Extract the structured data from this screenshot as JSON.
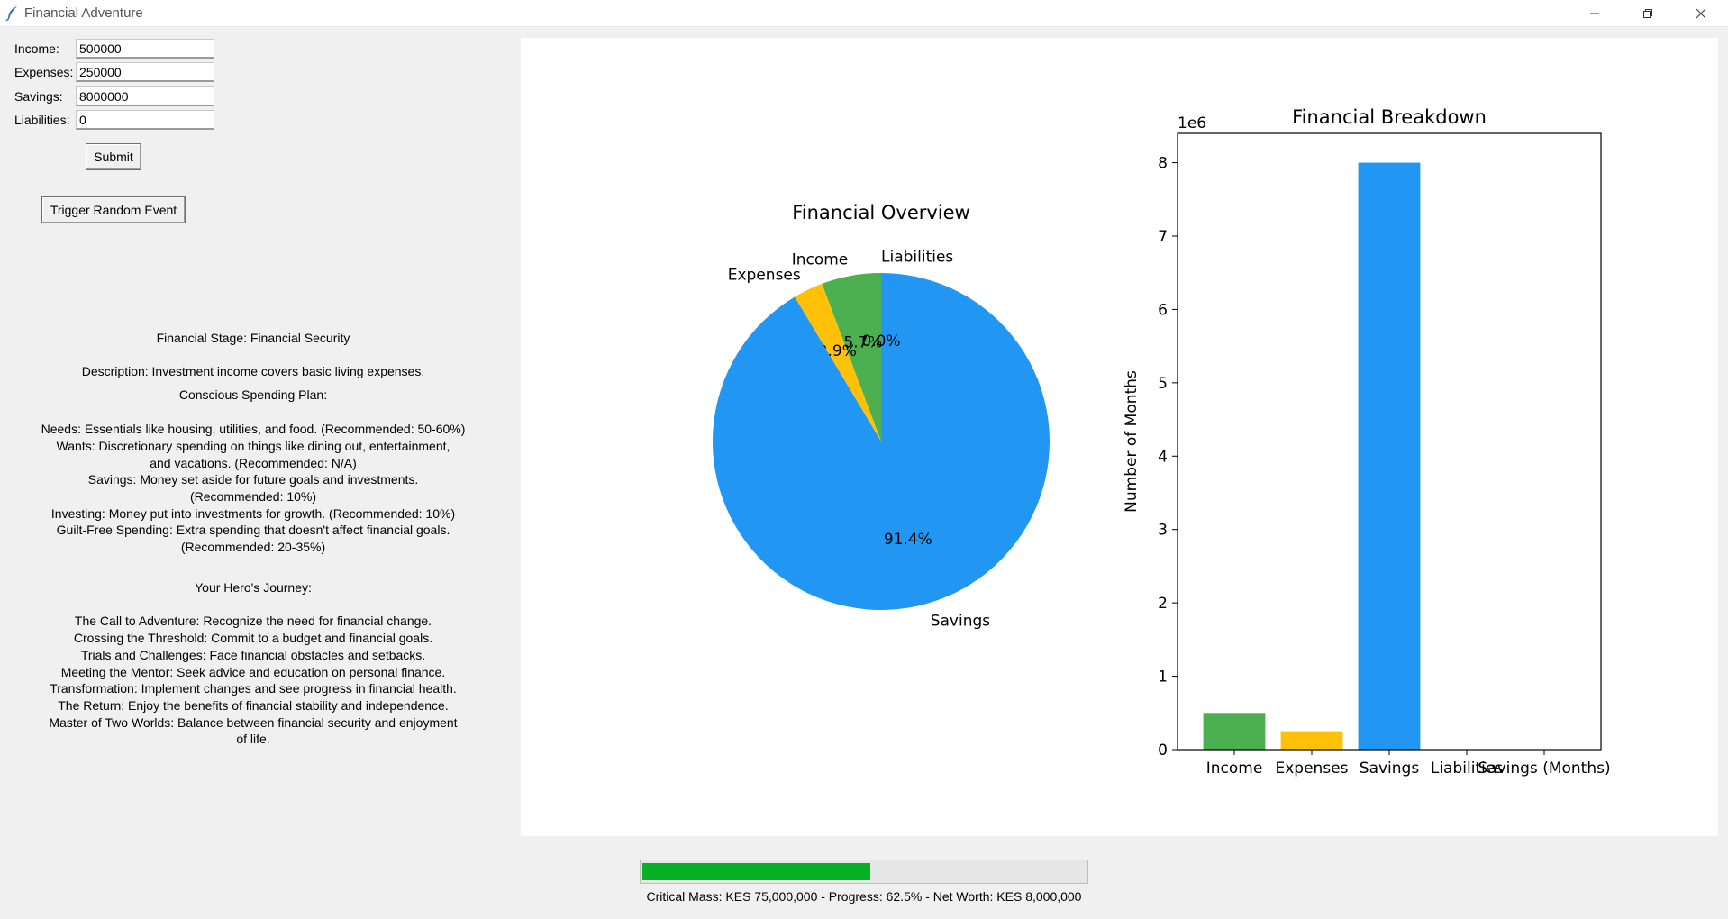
{
  "window": {
    "title": "Financial Adventure",
    "icons": [
      "feather-icon",
      "minimize-icon",
      "restore-icon",
      "close-icon"
    ]
  },
  "form": {
    "income_label": "Income:",
    "income_value": "500000",
    "expenses_label": "Expenses:",
    "expenses_value": "250000",
    "savings_label": "Savings:",
    "savings_value": "8000000",
    "liabilities_label": "Liabilities:",
    "liabilities_value": "0",
    "submit_label": "Submit",
    "random_event_label": "Trigger Random Event"
  },
  "info": {
    "stage": "Financial Stage: Financial Security",
    "description": "Description: Investment income covers basic living expenses.",
    "plan_title": "Conscious Spending Plan:",
    "plan_lines": [
      "Needs: Essentials like housing, utilities, and food. (Recommended: 50-60%)",
      "Wants: Discretionary spending on things like dining out, entertainment,",
      "and vacations. (Recommended: N/A)",
      "Savings: Money set aside for future goals and investments.",
      "(Recommended: 10%)",
      "Investing: Money put into investments for growth. (Recommended: 10%)",
      "Guilt-Free Spending: Extra spending that doesn't affect financial goals.",
      "(Recommended: 20-35%)"
    ],
    "journey_title": "Your Hero's Journey:",
    "journey_lines": [
      "The Call to Adventure: Recognize the need for financial change.",
      "Crossing the Threshold: Commit to a budget and financial goals.",
      "Trials and Challenges: Face financial obstacles and setbacks.",
      "Meeting the Mentor: Seek advice and education on personal finance.",
      "Transformation: Implement changes and see progress in financial health.",
      "The Return: Enjoy the benefits of financial stability and independence.",
      "Master of Two Worlds: Balance between financial security and enjoyment",
      "of life."
    ]
  },
  "colors": {
    "income": "#4caf50",
    "expenses": "#ffc107",
    "savings": "#2196f3",
    "liabilities": "#f44336",
    "progress": "#06b025"
  },
  "chart_data": [
    {
      "type": "pie",
      "title": "Financial Overview",
      "slices": [
        {
          "label": "Income",
          "value": 500000,
          "pct_label": "5.7%",
          "color": "#4caf50"
        },
        {
          "label": "Expenses",
          "value": 250000,
          "pct_label": "2.9%",
          "color": "#ffc107"
        },
        {
          "label": "Savings",
          "value": 8000000,
          "pct_label": "91.4%",
          "color": "#2196f3"
        },
        {
          "label": "Liabilities",
          "value": 0,
          "pct_label": "0.0%",
          "color": "#f44336"
        }
      ],
      "start_angle_deg": 90
    },
    {
      "type": "bar",
      "title": "Financial Breakdown",
      "categories": [
        "Income",
        "Expenses",
        "Savings",
        "Liabilities",
        "Savings (Months)"
      ],
      "values": [
        500000,
        250000,
        8000000,
        0,
        0
      ],
      "colors": [
        "#4caf50",
        "#ffc107",
        "#2196f3",
        "#f44336",
        "#9c27b0"
      ],
      "ylabel": "Number of Months",
      "offset_label": "1e6",
      "ylim": [
        0,
        8400000
      ],
      "yticks": [
        0,
        1,
        2,
        3,
        4,
        5,
        6,
        7,
        8
      ],
      "scale": 1000000
    }
  ],
  "progress": {
    "fraction": 0.625,
    "text": "Critical Mass: KES 75,000,000 - Progress: 62.5% - Net Worth: KES 8,000,000"
  }
}
